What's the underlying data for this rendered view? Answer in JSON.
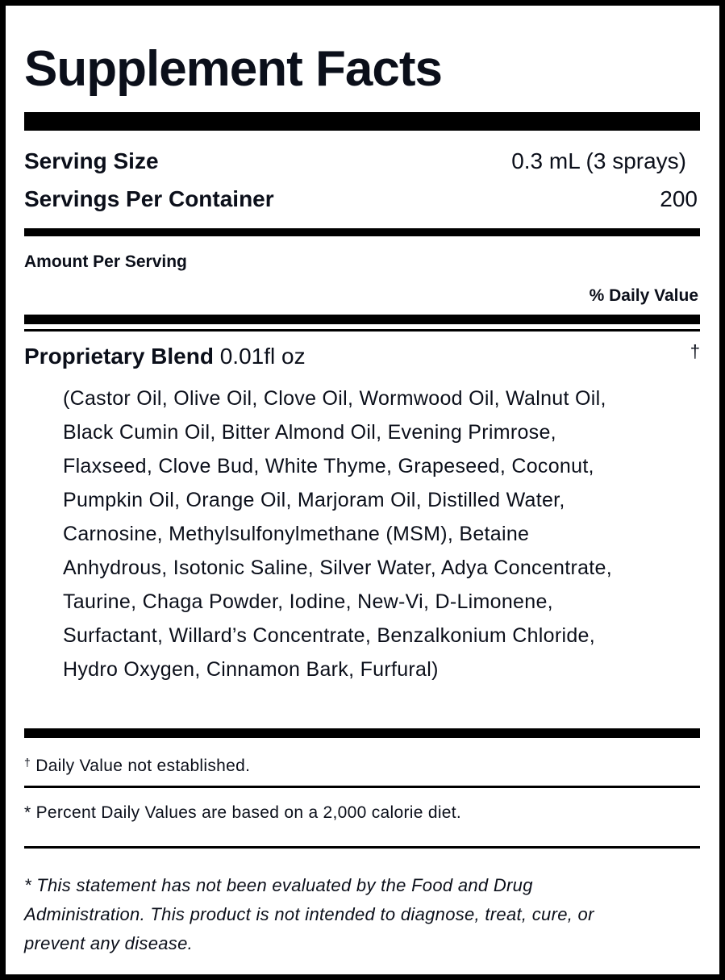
{
  "title": "Supplement Facts",
  "serving": {
    "size_label": "Serving Size",
    "size_value": "0.3 mL (3 sprays)",
    "per_container_label": "Servings Per Container",
    "per_container_value": "200"
  },
  "amount_per_serving": "Amount Per Serving",
  "daily_value_header": "% Daily Value",
  "blend": {
    "name": "Proprietary Blend",
    "amount": "0.01fl oz",
    "daily_value": "†",
    "ingredients_lines": [
      "(Castor Oil, Olive Oil, Clove Oil, Wormwood Oil, Walnut Oil,",
      "Black Cumin Oil, Bitter Almond Oil, Evening Primrose,",
      "Flaxseed, Clove Bud, White Thyme, Grapeseed, Coconut,",
      "Pumpkin Oil, Orange Oil, Marjoram Oil, Distilled Water,",
      "Carnosine, Methylsulfonylmethane (MSM), Betaine",
      "Anhydrous, Isotonic Saline, Silver Water, Adya Concentrate,",
      "Taurine, Chaga Powder, Iodine, New-Vi, D-Limonene,",
      "Surfactant, Willard’s Concentrate, Benzalkonium Chloride,",
      "Hydro Oxygen, Cinnamon Bark, Furfural)"
    ]
  },
  "footnotes": {
    "dagger_symbol": "†",
    "dagger_text": "Daily Value not established.",
    "percent_note": "* Percent Daily Values are based on a 2,000 calorie diet.",
    "disclaimer_lines": [
      "* This statement has not been evaluated by the Food and Drug",
      "Administration. This product is not intended to diagnose, treat, cure, or",
      "prevent any disease."
    ]
  }
}
